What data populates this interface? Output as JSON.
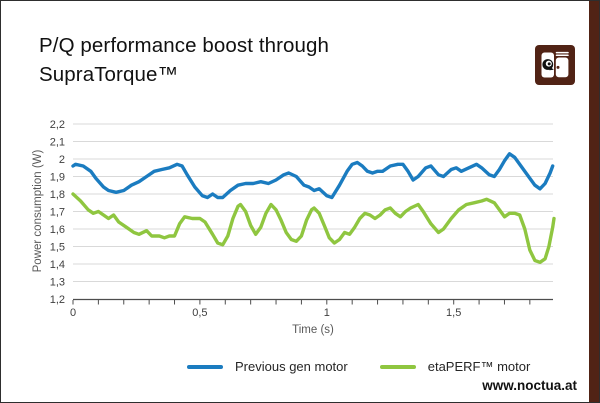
{
  "title": {
    "line1": "P/Q performance boost through",
    "line2": "SupraTorque™"
  },
  "branding": {
    "logo_icon": "noctua-owl-fan-icon",
    "brand_color": "#512315",
    "url": "www.noctua.at"
  },
  "colors": {
    "series_blue": "#1b7cc0",
    "series_green": "#8fc640",
    "grid": "#d9d9d9",
    "axis": "#4d4d4d",
    "tick_text": "#404040",
    "axis_title_text": "#595959"
  },
  "chart_data": {
    "type": "line",
    "title": "P/Q performance boost through SupraTorque™",
    "xlabel": "Time (s)",
    "ylabel": "Power consumption (W)",
    "xlim": [
      0,
      1.9
    ],
    "ylim": [
      1.2,
      2.2
    ],
    "grid": "horizontal",
    "legend_position": "bottom",
    "decimal_separator": ",",
    "x_major_ticks": [
      0,
      0.5,
      1,
      1.5
    ],
    "x_tick_labels": [
      "0",
      "0,5",
      "1",
      "1,5"
    ],
    "x_minor_tick_step": 0.1,
    "y_ticks": [
      2.2,
      2.1,
      2.0,
      1.9,
      1.8,
      1.7,
      1.6,
      1.5,
      1.4,
      1.3,
      1.2
    ],
    "y_tick_labels": [
      "2,2",
      "2,1",
      "2",
      "1,9",
      "1,8",
      "1,7",
      "1,6",
      "1,5",
      "1,4",
      "1,3",
      "1,2"
    ],
    "series": [
      {
        "name": "Previous gen motor",
        "color": "#1b7cc0",
        "points": [
          [
            0,
            1.96
          ],
          [
            0.01,
            1.97
          ],
          [
            0.04,
            1.96
          ],
          [
            0.07,
            1.93
          ],
          [
            0.09,
            1.89
          ],
          [
            0.12,
            1.84
          ],
          [
            0.14,
            1.82
          ],
          [
            0.17,
            1.81
          ],
          [
            0.2,
            1.82
          ],
          [
            0.23,
            1.85
          ],
          [
            0.26,
            1.87
          ],
          [
            0.29,
            1.9
          ],
          [
            0.32,
            1.93
          ],
          [
            0.35,
            1.94
          ],
          [
            0.38,
            1.95
          ],
          [
            0.41,
            1.97
          ],
          [
            0.43,
            1.96
          ],
          [
            0.45,
            1.91
          ],
          [
            0.48,
            1.84
          ],
          [
            0.51,
            1.79
          ],
          [
            0.53,
            1.78
          ],
          [
            0.55,
            1.8
          ],
          [
            0.57,
            1.78
          ],
          [
            0.59,
            1.78
          ],
          [
            0.62,
            1.82
          ],
          [
            0.65,
            1.85
          ],
          [
            0.68,
            1.86
          ],
          [
            0.71,
            1.86
          ],
          [
            0.74,
            1.87
          ],
          [
            0.77,
            1.86
          ],
          [
            0.8,
            1.88
          ],
          [
            0.83,
            1.91
          ],
          [
            0.85,
            1.92
          ],
          [
            0.88,
            1.9
          ],
          [
            0.91,
            1.85
          ],
          [
            0.93,
            1.84
          ],
          [
            0.95,
            1.82
          ],
          [
            0.97,
            1.83
          ],
          [
            1.0,
            1.79
          ],
          [
            1.02,
            1.78
          ],
          [
            1.05,
            1.85
          ],
          [
            1.08,
            1.93
          ],
          [
            1.1,
            1.97
          ],
          [
            1.12,
            1.98
          ],
          [
            1.14,
            1.96
          ],
          [
            1.16,
            1.93
          ],
          [
            1.18,
            1.92
          ],
          [
            1.2,
            1.93
          ],
          [
            1.22,
            1.93
          ],
          [
            1.25,
            1.96
          ],
          [
            1.28,
            1.97
          ],
          [
            1.3,
            1.97
          ],
          [
            1.32,
            1.93
          ],
          [
            1.34,
            1.88
          ],
          [
            1.36,
            1.9
          ],
          [
            1.39,
            1.95
          ],
          [
            1.41,
            1.96
          ],
          [
            1.44,
            1.91
          ],
          [
            1.46,
            1.9
          ],
          [
            1.49,
            1.94
          ],
          [
            1.51,
            1.95
          ],
          [
            1.53,
            1.93
          ],
          [
            1.56,
            1.95
          ],
          [
            1.59,
            1.97
          ],
          [
            1.61,
            1.95
          ],
          [
            1.64,
            1.91
          ],
          [
            1.66,
            1.9
          ],
          [
            1.68,
            1.94
          ],
          [
            1.7,
            1.99
          ],
          [
            1.72,
            2.03
          ],
          [
            1.74,
            2.01
          ],
          [
            1.77,
            1.95
          ],
          [
            1.8,
            1.89
          ],
          [
            1.82,
            1.85
          ],
          [
            1.84,
            1.83
          ],
          [
            1.86,
            1.86
          ],
          [
            1.88,
            1.92
          ],
          [
            1.89,
            1.96
          ]
        ]
      },
      {
        "name": "etaPERF™ motor",
        "color": "#8fc640",
        "points": [
          [
            0,
            1.8
          ],
          [
            0.03,
            1.76
          ],
          [
            0.06,
            1.71
          ],
          [
            0.08,
            1.69
          ],
          [
            0.1,
            1.7
          ],
          [
            0.12,
            1.68
          ],
          [
            0.14,
            1.66
          ],
          [
            0.16,
            1.68
          ],
          [
            0.18,
            1.64
          ],
          [
            0.21,
            1.61
          ],
          [
            0.24,
            1.58
          ],
          [
            0.26,
            1.57
          ],
          [
            0.29,
            1.59
          ],
          [
            0.31,
            1.56
          ],
          [
            0.34,
            1.56
          ],
          [
            0.36,
            1.55
          ],
          [
            0.38,
            1.56
          ],
          [
            0.4,
            1.56
          ],
          [
            0.42,
            1.63
          ],
          [
            0.44,
            1.67
          ],
          [
            0.47,
            1.66
          ],
          [
            0.5,
            1.66
          ],
          [
            0.52,
            1.64
          ],
          [
            0.55,
            1.57
          ],
          [
            0.57,
            1.52
          ],
          [
            0.59,
            1.51
          ],
          [
            0.61,
            1.56
          ],
          [
            0.63,
            1.66
          ],
          [
            0.65,
            1.73
          ],
          [
            0.66,
            1.74
          ],
          [
            0.68,
            1.7
          ],
          [
            0.7,
            1.62
          ],
          [
            0.72,
            1.57
          ],
          [
            0.74,
            1.61
          ],
          [
            0.76,
            1.69
          ],
          [
            0.78,
            1.74
          ],
          [
            0.8,
            1.71
          ],
          [
            0.82,
            1.65
          ],
          [
            0.84,
            1.58
          ],
          [
            0.86,
            1.54
          ],
          [
            0.88,
            1.53
          ],
          [
            0.9,
            1.56
          ],
          [
            0.92,
            1.65
          ],
          [
            0.94,
            1.71
          ],
          [
            0.95,
            1.72
          ],
          [
            0.97,
            1.69
          ],
          [
            0.99,
            1.62
          ],
          [
            1.01,
            1.55
          ],
          [
            1.03,
            1.52
          ],
          [
            1.05,
            1.54
          ],
          [
            1.07,
            1.58
          ],
          [
            1.09,
            1.57
          ],
          [
            1.11,
            1.61
          ],
          [
            1.13,
            1.66
          ],
          [
            1.15,
            1.69
          ],
          [
            1.17,
            1.68
          ],
          [
            1.19,
            1.66
          ],
          [
            1.21,
            1.68
          ],
          [
            1.23,
            1.71
          ],
          [
            1.25,
            1.72
          ],
          [
            1.27,
            1.69
          ],
          [
            1.29,
            1.67
          ],
          [
            1.31,
            1.7
          ],
          [
            1.33,
            1.72
          ],
          [
            1.36,
            1.74
          ],
          [
            1.38,
            1.7
          ],
          [
            1.41,
            1.63
          ],
          [
            1.44,
            1.58
          ],
          [
            1.46,
            1.6
          ],
          [
            1.49,
            1.66
          ],
          [
            1.52,
            1.71
          ],
          [
            1.55,
            1.74
          ],
          [
            1.58,
            1.75
          ],
          [
            1.61,
            1.76
          ],
          [
            1.63,
            1.77
          ],
          [
            1.66,
            1.75
          ],
          [
            1.68,
            1.71
          ],
          [
            1.7,
            1.67
          ],
          [
            1.72,
            1.69
          ],
          [
            1.74,
            1.69
          ],
          [
            1.76,
            1.68
          ],
          [
            1.78,
            1.6
          ],
          [
            1.8,
            1.48
          ],
          [
            1.82,
            1.42
          ],
          [
            1.84,
            1.41
          ],
          [
            1.86,
            1.43
          ],
          [
            1.875,
            1.5
          ],
          [
            1.89,
            1.61
          ],
          [
            1.895,
            1.66
          ]
        ]
      }
    ]
  }
}
